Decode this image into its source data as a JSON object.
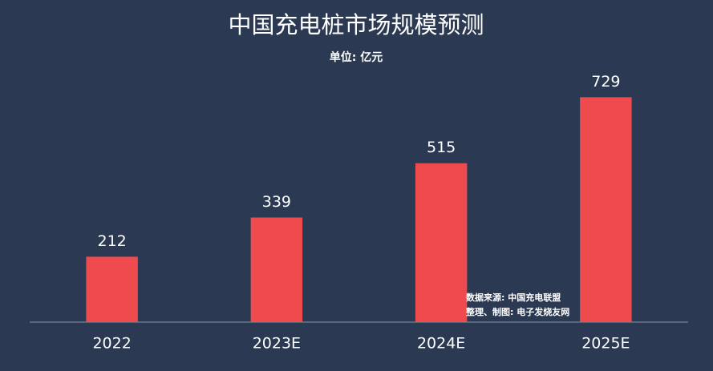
{
  "chart_data": {
    "type": "bar",
    "title": "中国充电桩市场规模预测",
    "subtitle": "单位: 亿元",
    "categories": [
      "2022",
      "2023E",
      "2024E",
      "2025E"
    ],
    "values": [
      212,
      339,
      515,
      729
    ],
    "color": "#ef4a4e",
    "ylim": [
      0,
      800
    ],
    "source": [
      "数据来源: 中国充电联盟",
      "整理、制图: 电子发烧友网"
    ]
  }
}
